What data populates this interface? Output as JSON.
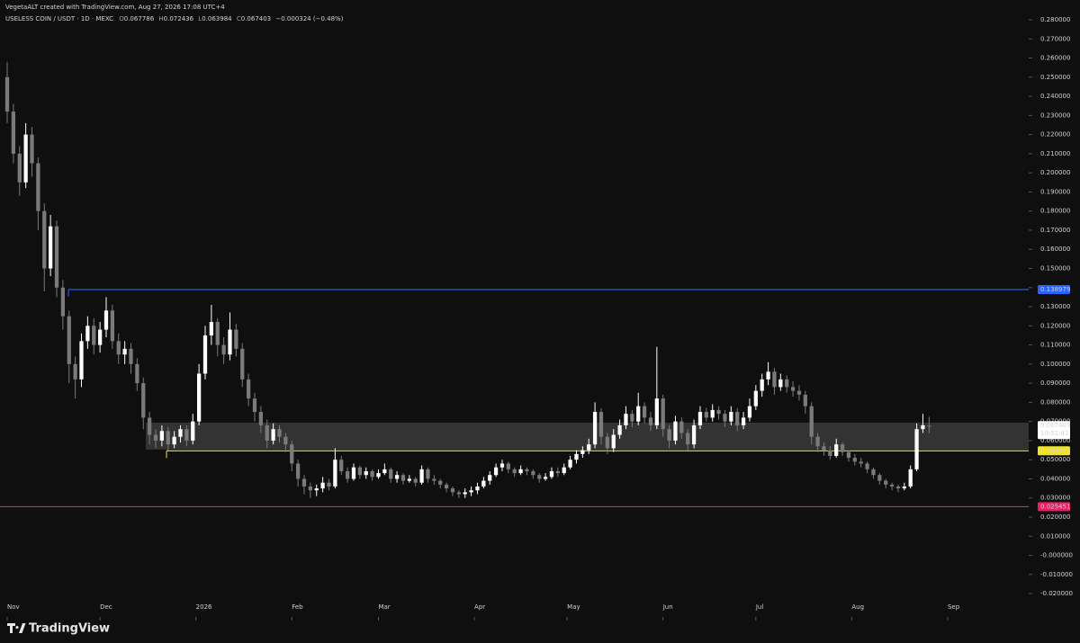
{
  "header": {
    "credit": "VegetaALT created with TradingView.com, Aug 27, 2026 17:08 UTC+4",
    "brand": "TradingView"
  },
  "chart_data": {
    "type": "candlestick",
    "title": "USELESS COIN / USDT · 1D · MEXC",
    "ohlc_prefixes": [
      "O",
      "H",
      "L",
      "C"
    ],
    "change": "−0.000324 (−0.48%)",
    "countdown": "10:51:41",
    "x": [
      0,
      2,
      4,
      6,
      8,
      10,
      12,
      14,
      16,
      18,
      20,
      22,
      24,
      26,
      28,
      30,
      32,
      34,
      36,
      38,
      40,
      42,
      44,
      46,
      48,
      50,
      52,
      54,
      56,
      58,
      60,
      62,
      64,
      66,
      68,
      70,
      72,
      74,
      76,
      78,
      80,
      82,
      84,
      86,
      88,
      90,
      92,
      94,
      96,
      98,
      100,
      102,
      104,
      106,
      108,
      110,
      112,
      114,
      116,
      118,
      120,
      122,
      124,
      126,
      128,
      130,
      132,
      134,
      136,
      138,
      140,
      142,
      144,
      146,
      148,
      150,
      152,
      154,
      156,
      158,
      160,
      162,
      164,
      166,
      168,
      170,
      172,
      174,
      176,
      178,
      180,
      182,
      184,
      186,
      188,
      190,
      192,
      194,
      196,
      198,
      200,
      202,
      204,
      206,
      208,
      210,
      212,
      214,
      216,
      218,
      220,
      222,
      224,
      226,
      228,
      230,
      232,
      234,
      236,
      238,
      240,
      242,
      244,
      246,
      248,
      250,
      252,
      254,
      256,
      258,
      260,
      262,
      264,
      266,
      268,
      270,
      272,
      274,
      276,
      278,
      280,
      282,
      284,
      286,
      288,
      290,
      292,
      294,
      296,
      298
    ],
    "series": [
      {
        "up_color": "#ffffff",
        "down_color": "#7a7a7a",
        "open": [
          0.25,
          0.232,
          0.21,
          0.195,
          0.22,
          0.205,
          0.18,
          0.15,
          0.172,
          0.14,
          0.125,
          0.1,
          0.092,
          0.112,
          0.12,
          0.11,
          0.118,
          0.128,
          0.112,
          0.105,
          0.108,
          0.1,
          0.09,
          0.072,
          0.063,
          0.06,
          0.065,
          0.058,
          0.062,
          0.066,
          0.06,
          0.07,
          0.095,
          0.115,
          0.122,
          0.11,
          0.105,
          0.118,
          0.108,
          0.092,
          0.082,
          0.075,
          0.068,
          0.06,
          0.066,
          0.062,
          0.058,
          0.048,
          0.04,
          0.036,
          0.034,
          0.035,
          0.038,
          0.036,
          0.05,
          0.044,
          0.04,
          0.046,
          0.042,
          0.044,
          0.041,
          0.043,
          0.045,
          0.04,
          0.042,
          0.039,
          0.04,
          0.038,
          0.045,
          0.04,
          0.039,
          0.037,
          0.035,
          0.033,
          0.032,
          0.033,
          0.034,
          0.036,
          0.039,
          0.042,
          0.046,
          0.048,
          0.045,
          0.043,
          0.045,
          0.044,
          0.042,
          0.04,
          0.041,
          0.044,
          0.043,
          0.046,
          0.05,
          0.053,
          0.055,
          0.058,
          0.075,
          0.062,
          0.056,
          0.063,
          0.068,
          0.074,
          0.07,
          0.078,
          0.072,
          0.068,
          0.082,
          0.066,
          0.06,
          0.07,
          0.064,
          0.058,
          0.068,
          0.075,
          0.072,
          0.076,
          0.074,
          0.07,
          0.075,
          0.068,
          0.072,
          0.078,
          0.086,
          0.092,
          0.096,
          0.088,
          0.092,
          0.088,
          0.086,
          0.084,
          0.078,
          0.062,
          0.057,
          0.055,
          0.052,
          0.058,
          0.054,
          0.051,
          0.049,
          0.048,
          0.045,
          0.042,
          0.039,
          0.037,
          0.036,
          0.035,
          0.036,
          0.045,
          0.066,
          0.067786
        ],
        "high": [
          0.258,
          0.236,
          0.214,
          0.226,
          0.224,
          0.208,
          0.184,
          0.178,
          0.175,
          0.144,
          0.128,
          0.104,
          0.116,
          0.125,
          0.124,
          0.122,
          0.135,
          0.131,
          0.116,
          0.112,
          0.111,
          0.103,
          0.093,
          0.075,
          0.066,
          0.068,
          0.067,
          0.065,
          0.068,
          0.068,
          0.074,
          0.1,
          0.12,
          0.131,
          0.124,
          0.114,
          0.127,
          0.121,
          0.111,
          0.095,
          0.085,
          0.078,
          0.071,
          0.069,
          0.068,
          0.064,
          0.06,
          0.05,
          0.042,
          0.038,
          0.037,
          0.041,
          0.04,
          0.056,
          0.052,
          0.046,
          0.048,
          0.047,
          0.046,
          0.045,
          0.045,
          0.048,
          0.046,
          0.044,
          0.043,
          0.042,
          0.041,
          0.047,
          0.046,
          0.042,
          0.04,
          0.038,
          0.036,
          0.034,
          0.035,
          0.036,
          0.038,
          0.041,
          0.044,
          0.048,
          0.05,
          0.049,
          0.046,
          0.047,
          0.046,
          0.045,
          0.043,
          0.043,
          0.046,
          0.046,
          0.048,
          0.052,
          0.055,
          0.057,
          0.061,
          0.08,
          0.077,
          0.064,
          0.066,
          0.071,
          0.078,
          0.076,
          0.085,
          0.08,
          0.075,
          0.109,
          0.084,
          0.068,
          0.073,
          0.072,
          0.066,
          0.071,
          0.078,
          0.077,
          0.079,
          0.078,
          0.076,
          0.078,
          0.077,
          0.075,
          0.082,
          0.089,
          0.095,
          0.101,
          0.098,
          0.095,
          0.094,
          0.091,
          0.089,
          0.086,
          0.08,
          0.064,
          0.059,
          0.057,
          0.061,
          0.059,
          0.055,
          0.053,
          0.051,
          0.049,
          0.046,
          0.043,
          0.04,
          0.038,
          0.037,
          0.038,
          0.047,
          0.069,
          0.074,
          0.072436
        ],
        "low": [
          0.226,
          0.205,
          0.188,
          0.192,
          0.198,
          0.17,
          0.138,
          0.146,
          0.135,
          0.118,
          0.09,
          0.082,
          0.088,
          0.108,
          0.105,
          0.106,
          0.114,
          0.108,
          0.1,
          0.1,
          0.095,
          0.086,
          0.066,
          0.058,
          0.056,
          0.057,
          0.055,
          0.056,
          0.059,
          0.057,
          0.058,
          0.068,
          0.092,
          0.11,
          0.104,
          0.1,
          0.102,
          0.104,
          0.088,
          0.078,
          0.07,
          0.064,
          0.056,
          0.058,
          0.059,
          0.054,
          0.044,
          0.036,
          0.032,
          0.03,
          0.031,
          0.033,
          0.034,
          0.035,
          0.042,
          0.038,
          0.039,
          0.04,
          0.04,
          0.039,
          0.04,
          0.042,
          0.038,
          0.038,
          0.037,
          0.038,
          0.036,
          0.037,
          0.038,
          0.037,
          0.035,
          0.033,
          0.031,
          0.03,
          0.03,
          0.031,
          0.032,
          0.035,
          0.037,
          0.041,
          0.044,
          0.043,
          0.041,
          0.042,
          0.042,
          0.04,
          0.038,
          0.039,
          0.04,
          0.041,
          0.042,
          0.045,
          0.048,
          0.051,
          0.053,
          0.056,
          0.058,
          0.053,
          0.054,
          0.061,
          0.066,
          0.067,
          0.068,
          0.069,
          0.065,
          0.066,
          0.062,
          0.056,
          0.058,
          0.061,
          0.055,
          0.056,
          0.066,
          0.07,
          0.07,
          0.071,
          0.067,
          0.068,
          0.065,
          0.066,
          0.07,
          0.076,
          0.083,
          0.089,
          0.084,
          0.086,
          0.085,
          0.083,
          0.081,
          0.074,
          0.058,
          0.054,
          0.052,
          0.05,
          0.051,
          0.052,
          0.049,
          0.047,
          0.046,
          0.043,
          0.04,
          0.037,
          0.035,
          0.034,
          0.033,
          0.034,
          0.035,
          0.044,
          0.064,
          0.063984
        ],
        "close": [
          0.232,
          0.21,
          0.195,
          0.22,
          0.205,
          0.18,
          0.15,
          0.172,
          0.14,
          0.125,
          0.1,
          0.092,
          0.112,
          0.12,
          0.11,
          0.118,
          0.128,
          0.112,
          0.105,
          0.108,
          0.1,
          0.09,
          0.072,
          0.063,
          0.06,
          0.065,
          0.058,
          0.062,
          0.066,
          0.06,
          0.07,
          0.095,
          0.115,
          0.122,
          0.11,
          0.105,
          0.118,
          0.108,
          0.092,
          0.082,
          0.075,
          0.068,
          0.06,
          0.066,
          0.062,
          0.058,
          0.048,
          0.04,
          0.036,
          0.034,
          0.035,
          0.038,
          0.036,
          0.05,
          0.044,
          0.04,
          0.046,
          0.042,
          0.044,
          0.041,
          0.043,
          0.045,
          0.04,
          0.042,
          0.039,
          0.04,
          0.038,
          0.045,
          0.04,
          0.039,
          0.037,
          0.035,
          0.033,
          0.032,
          0.033,
          0.034,
          0.036,
          0.039,
          0.042,
          0.046,
          0.048,
          0.045,
          0.043,
          0.045,
          0.044,
          0.042,
          0.04,
          0.041,
          0.044,
          0.043,
          0.046,
          0.05,
          0.053,
          0.055,
          0.058,
          0.075,
          0.062,
          0.056,
          0.063,
          0.068,
          0.074,
          0.07,
          0.078,
          0.072,
          0.068,
          0.082,
          0.066,
          0.06,
          0.07,
          0.064,
          0.058,
          0.068,
          0.075,
          0.072,
          0.076,
          0.074,
          0.07,
          0.075,
          0.068,
          0.072,
          0.078,
          0.086,
          0.092,
          0.096,
          0.088,
          0.092,
          0.088,
          0.086,
          0.084,
          0.078,
          0.062,
          0.057,
          0.055,
          0.052,
          0.058,
          0.054,
          0.051,
          0.049,
          0.048,
          0.045,
          0.042,
          0.039,
          0.037,
          0.036,
          0.035,
          0.036,
          0.045,
          0.066,
          0.068,
          0.067403
        ]
      }
    ],
    "xlim": [
      -2.33,
      330.2
    ],
    "xticks": [
      {
        "value": 0,
        "label": "Nov"
      },
      {
        "value": 30,
        "label": "Dec"
      },
      {
        "value": 61,
        "label": "2026"
      },
      {
        "value": 92,
        "label": "Feb"
      },
      {
        "value": 120,
        "label": "Mar"
      },
      {
        "value": 151,
        "label": "Apr"
      },
      {
        "value": 181,
        "label": "May"
      },
      {
        "value": 212,
        "label": "Jun"
      },
      {
        "value": 242,
        "label": "Jul"
      },
      {
        "value": 273,
        "label": "Aug"
      },
      {
        "value": 304,
        "label": "Sep"
      }
    ],
    "ylim": [
      -0.03406,
      0.29034
    ],
    "yticks": [
      {
        "value": 0.28,
        "label": "0.280000"
      },
      {
        "value": 0.27,
        "label": "0.270000"
      },
      {
        "value": 0.26,
        "label": "0.260000"
      },
      {
        "value": 0.25,
        "label": "0.250000"
      },
      {
        "value": 0.24,
        "label": "0.240000"
      },
      {
        "value": 0.23,
        "label": "0.230000"
      },
      {
        "value": 0.22,
        "label": "0.220000"
      },
      {
        "value": 0.21,
        "label": "0.210000"
      },
      {
        "value": 0.2,
        "label": "0.200000"
      },
      {
        "value": 0.19,
        "label": "0.190000"
      },
      {
        "value": 0.18,
        "label": "0.180000"
      },
      {
        "value": 0.17,
        "label": "0.170000"
      },
      {
        "value": 0.16,
        "label": "0.160000"
      },
      {
        "value": 0.15,
        "label": "0.150000"
      },
      {
        "value": 0.14,
        "label": "0.140000"
      },
      {
        "value": 0.13,
        "label": "0.130000"
      },
      {
        "value": 0.12,
        "label": "0.120000"
      },
      {
        "value": 0.11,
        "label": "0.110000"
      },
      {
        "value": 0.1,
        "label": "0.100000"
      },
      {
        "value": 0.09,
        "label": "0.090000"
      },
      {
        "value": 0.08,
        "label": "0.080000"
      },
      {
        "value": 0.07,
        "label": "0.070000"
      },
      {
        "value": 0.06,
        "label": "0.060000"
      },
      {
        "value": 0.05,
        "label": "0.050000"
      },
      {
        "value": 0.04,
        "label": "0.040000"
      },
      {
        "value": 0.03,
        "label": "0.030000"
      },
      {
        "value": 0.02,
        "label": "0.020000"
      },
      {
        "value": 0.01,
        "label": "0.010000"
      },
      {
        "value": 0,
        "label": "-0.000000"
      },
      {
        "value": -0.01,
        "label": "-0.010000"
      },
      {
        "value": -0.02,
        "label": "-0.020000"
      }
    ],
    "grid": false,
    "hlines": [
      {
        "value": 0.138979,
        "color": "#2962ff",
        "x_start": 19.8
      },
      {
        "value": 0.054653,
        "color": "#f5e61b",
        "x_start": 51.5
      },
      {
        "value": 0.025451,
        "color": "#e91e63",
        "x_start": -2.33
      }
    ],
    "zone": {
      "ylim": [
        0.0553,
        0.0694
      ],
      "x_start": 44.8,
      "color": "#3a3a3a"
    }
  }
}
